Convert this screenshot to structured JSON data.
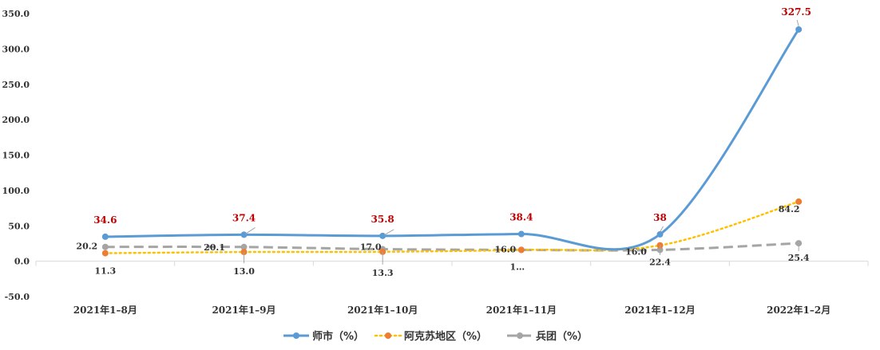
{
  "chart_data": {
    "type": "line",
    "categories": [
      "2021年1–8月",
      "2021年1–9月",
      "2021年1–10月",
      "2021年1–11月",
      "2021年1–12月",
      "2022年1–2月"
    ],
    "yticks": [
      "-50.0",
      "0.0",
      "50.0",
      "100.0",
      "150.0",
      "200.0",
      "250.0",
      "300.0",
      "350.0"
    ],
    "ylim": [
      -50,
      350
    ],
    "grid": false,
    "legend_position": "bottom",
    "series": [
      {
        "name": "师市（%）",
        "values": [
          34.6,
          37.4,
          35.8,
          38.4,
          38,
          327.5
        ],
        "labels": [
          "34.6",
          "37.4",
          "35.8",
          "38.4",
          "38",
          "327.5"
        ],
        "color": "#5b9bd5",
        "dash": "solid"
      },
      {
        "name": "阿克苏地区（%）",
        "values": [
          11.3,
          13.0,
          13.3,
          16.0,
          22.4,
          84.2
        ],
        "labels": [
          "11.3",
          "13.0",
          "13.3",
          "1…",
          "22.4",
          "84.2"
        ],
        "color": "#ed7d31",
        "line_color": "#ffc000",
        "dash": "dotted"
      },
      {
        "name": "兵团（%）",
        "values": [
          20.2,
          20.1,
          17.0,
          16.0,
          16.0,
          25.4
        ],
        "labels": [
          "20.2",
          "20.1",
          "17.0",
          "16.0",
          "16.0",
          "25.4"
        ],
        "color": "#a5a5a5",
        "dash": "dashed"
      }
    ]
  }
}
